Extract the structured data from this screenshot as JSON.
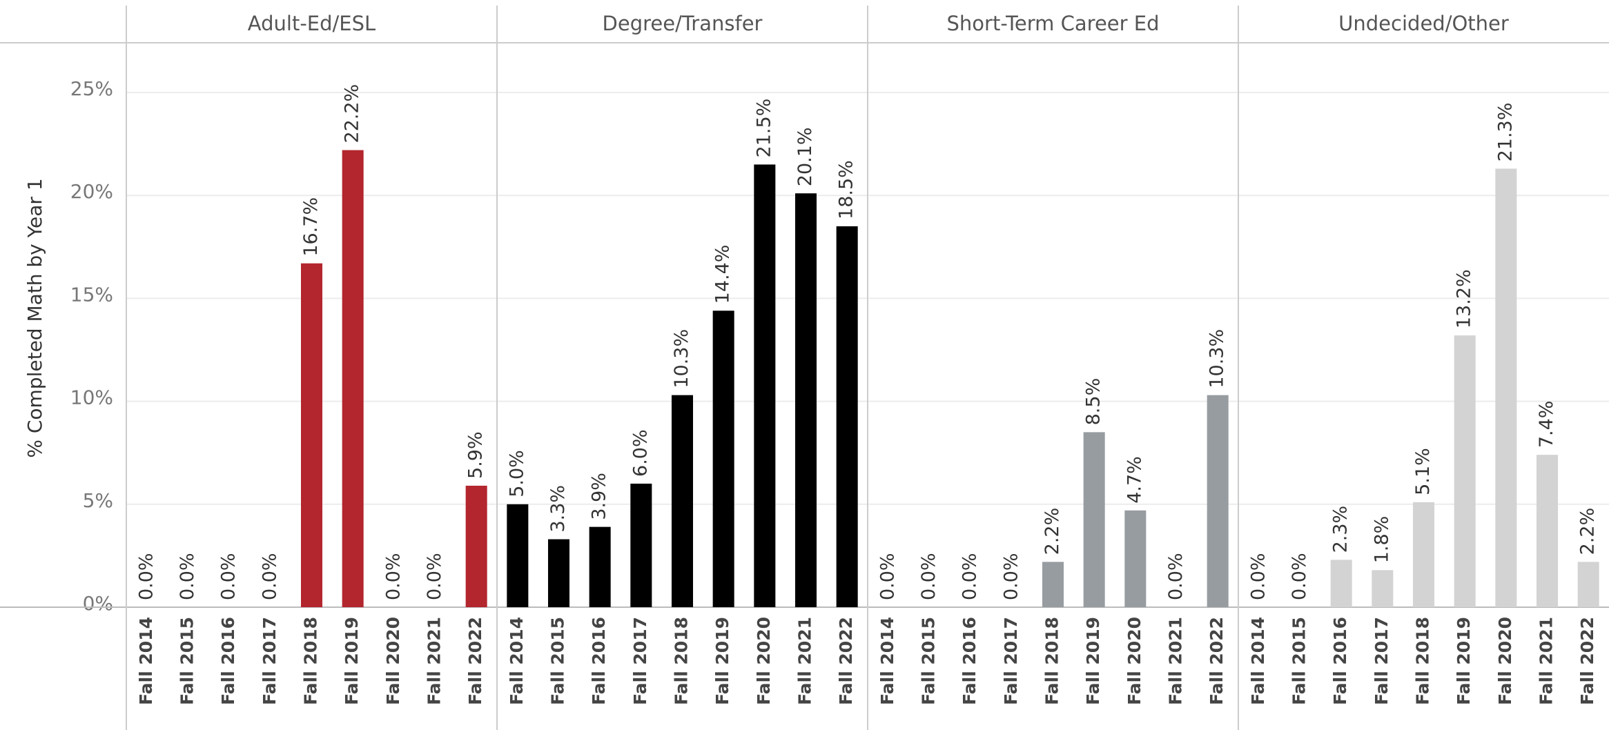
{
  "chart_data": {
    "type": "bar",
    "y_label": "% Completed Math by Year 1",
    "ylim": [
      0,
      25
    ],
    "yticks": [
      {
        "value": 0,
        "label": "0%"
      },
      {
        "value": 5,
        "label": "5%"
      },
      {
        "value": 10,
        "label": "10%"
      },
      {
        "value": 15,
        "label": "15%"
      },
      {
        "value": 20,
        "label": "20%"
      },
      {
        "value": 25,
        "label": "25%"
      }
    ],
    "grid": true,
    "panels": [
      {
        "title": "Adult-Ed/ESL",
        "color": "#b3262e",
        "categories": [
          "Fall 2014",
          "Fall 2015",
          "Fall 2016",
          "Fall 2017",
          "Fall 2018",
          "Fall 2019",
          "Fall 2020",
          "Fall 2021",
          "Fall 2022"
        ],
        "values": [
          0,
          0,
          0,
          0,
          16.7,
          22.2,
          0,
          0,
          5.9
        ],
        "value_labels": [
          "0.0%",
          "0.0%",
          "0.0%",
          "0.0%",
          "16.7%",
          "22.2%",
          "0.0%",
          "0.0%",
          "5.9%"
        ]
      },
      {
        "title": "Degree/Transfer",
        "color": "#000000",
        "categories": [
          "Fall 2014",
          "Fall 2015",
          "Fall 2016",
          "Fall 2017",
          "Fall 2018",
          "Fall 2019",
          "Fall 2020",
          "Fall 2021",
          "Fall 2022"
        ],
        "values": [
          5.0,
          3.3,
          3.9,
          6.0,
          10.3,
          14.4,
          21.5,
          20.1,
          18.5
        ],
        "value_labels": [
          "5.0%",
          "3.3%",
          "3.9%",
          "6.0%",
          "10.3%",
          "14.4%",
          "21.5%",
          "20.1%",
          "18.5%"
        ]
      },
      {
        "title": "Short-Term Career Ed",
        "color": "#979ca1",
        "categories": [
          "Fall 2014",
          "Fall 2015",
          "Fall 2016",
          "Fall 2017",
          "Fall 2018",
          "Fall 2019",
          "Fall 2020",
          "Fall 2021",
          "Fall 2022"
        ],
        "values": [
          0,
          0,
          0,
          0,
          2.2,
          8.5,
          4.7,
          0,
          10.3
        ],
        "value_labels": [
          "0.0%",
          "0.0%",
          "0.0%",
          "0.0%",
          "2.2%",
          "8.5%",
          "4.7%",
          "0.0%",
          "10.3%"
        ]
      },
      {
        "title": "Undecided/Other",
        "color": "#d3d3d3",
        "categories": [
          "Fall 2014",
          "Fall 2015",
          "Fall 2016",
          "Fall 2017",
          "Fall 2018",
          "Fall 2019",
          "Fall 2020",
          "Fall 2021",
          "Fall 2022"
        ],
        "values": [
          0,
          0,
          2.3,
          1.8,
          5.1,
          13.2,
          21.3,
          7.4,
          2.2
        ],
        "value_labels": [
          "0.0%",
          "0.0%",
          "2.3%",
          "1.8%",
          "5.1%",
          "13.2%",
          "21.3%",
          "7.4%",
          "2.2%"
        ]
      }
    ]
  }
}
